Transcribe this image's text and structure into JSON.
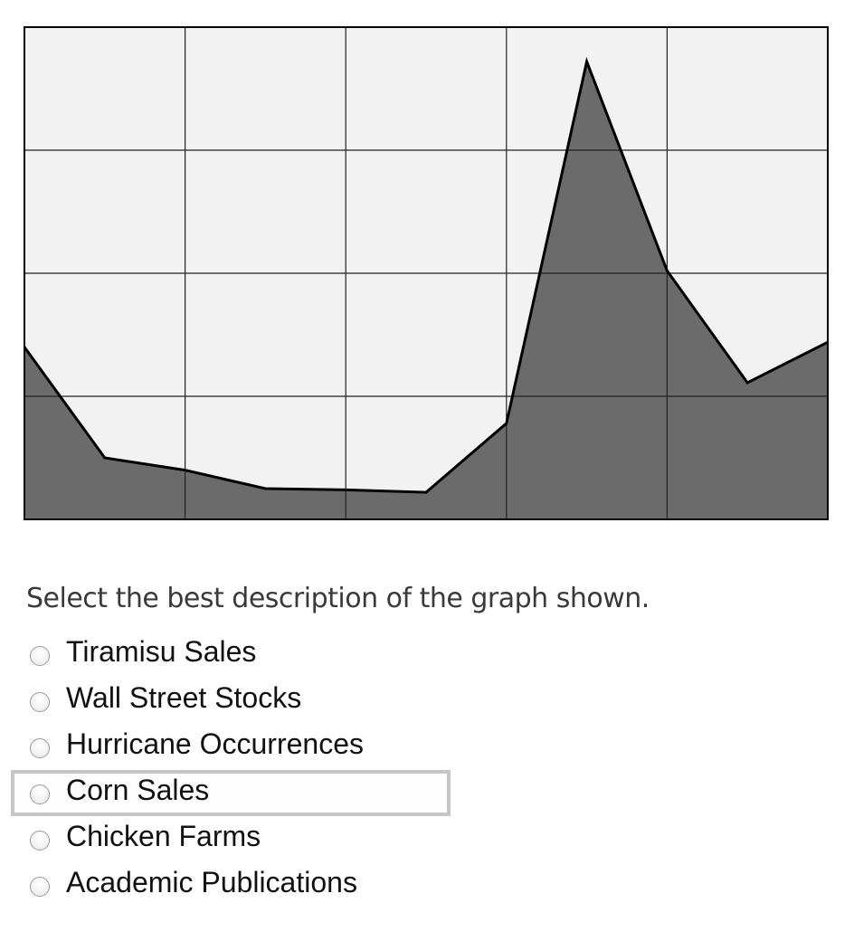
{
  "chart_data": {
    "type": "area",
    "x": [
      0,
      0.5,
      1,
      1.5,
      2,
      2.5,
      3,
      3.5,
      4,
      4.5,
      5
    ],
    "values": [
      1.4,
      0.5,
      0.4,
      0.25,
      0.24,
      0.22,
      0.78,
      3.72,
      2.02,
      1.11,
      1.44
    ],
    "xlim": [
      0,
      5
    ],
    "ylim": [
      0,
      4
    ],
    "grid": true,
    "title": "",
    "xlabel": "",
    "ylabel": "",
    "colors": {
      "fill": "#6b6b6b",
      "line": "#000000",
      "plot_background": "#f2f2f2",
      "grid": "#222222"
    }
  },
  "question": {
    "prompt": "Select the best description of the graph shown."
  },
  "options": [
    {
      "label": "Tiramisu Sales",
      "focused": false
    },
    {
      "label": "Wall Street Stocks",
      "focused": false
    },
    {
      "label": "Hurricane Occurrences",
      "focused": false
    },
    {
      "label": "Corn Sales",
      "focused": true
    },
    {
      "label": "Chicken Farms",
      "focused": false
    },
    {
      "label": "Academic Publications",
      "focused": false
    }
  ]
}
